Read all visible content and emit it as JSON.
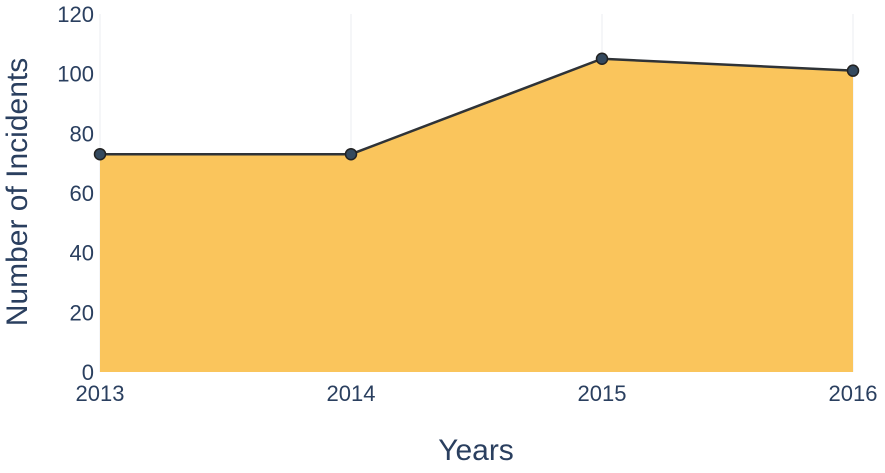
{
  "chart_data": {
    "type": "area",
    "title": "",
    "xlabel": "Years",
    "ylabel": "Number of Incidents",
    "categories": [
      "2013",
      "2014",
      "2015",
      "2016"
    ],
    "series": [
      {
        "values": [
          73,
          73,
          105,
          101
        ]
      }
    ],
    "ylim": [
      0,
      120
    ],
    "yticks": [
      "0",
      "20",
      "40",
      "60",
      "80",
      "100",
      "120"
    ],
    "grid": "vertical, faint",
    "legend": "none",
    "colors": {
      "fill": "#fac55c",
      "line": "#2f3337",
      "marker": "#34495e",
      "text": "#2a3f5f"
    }
  }
}
